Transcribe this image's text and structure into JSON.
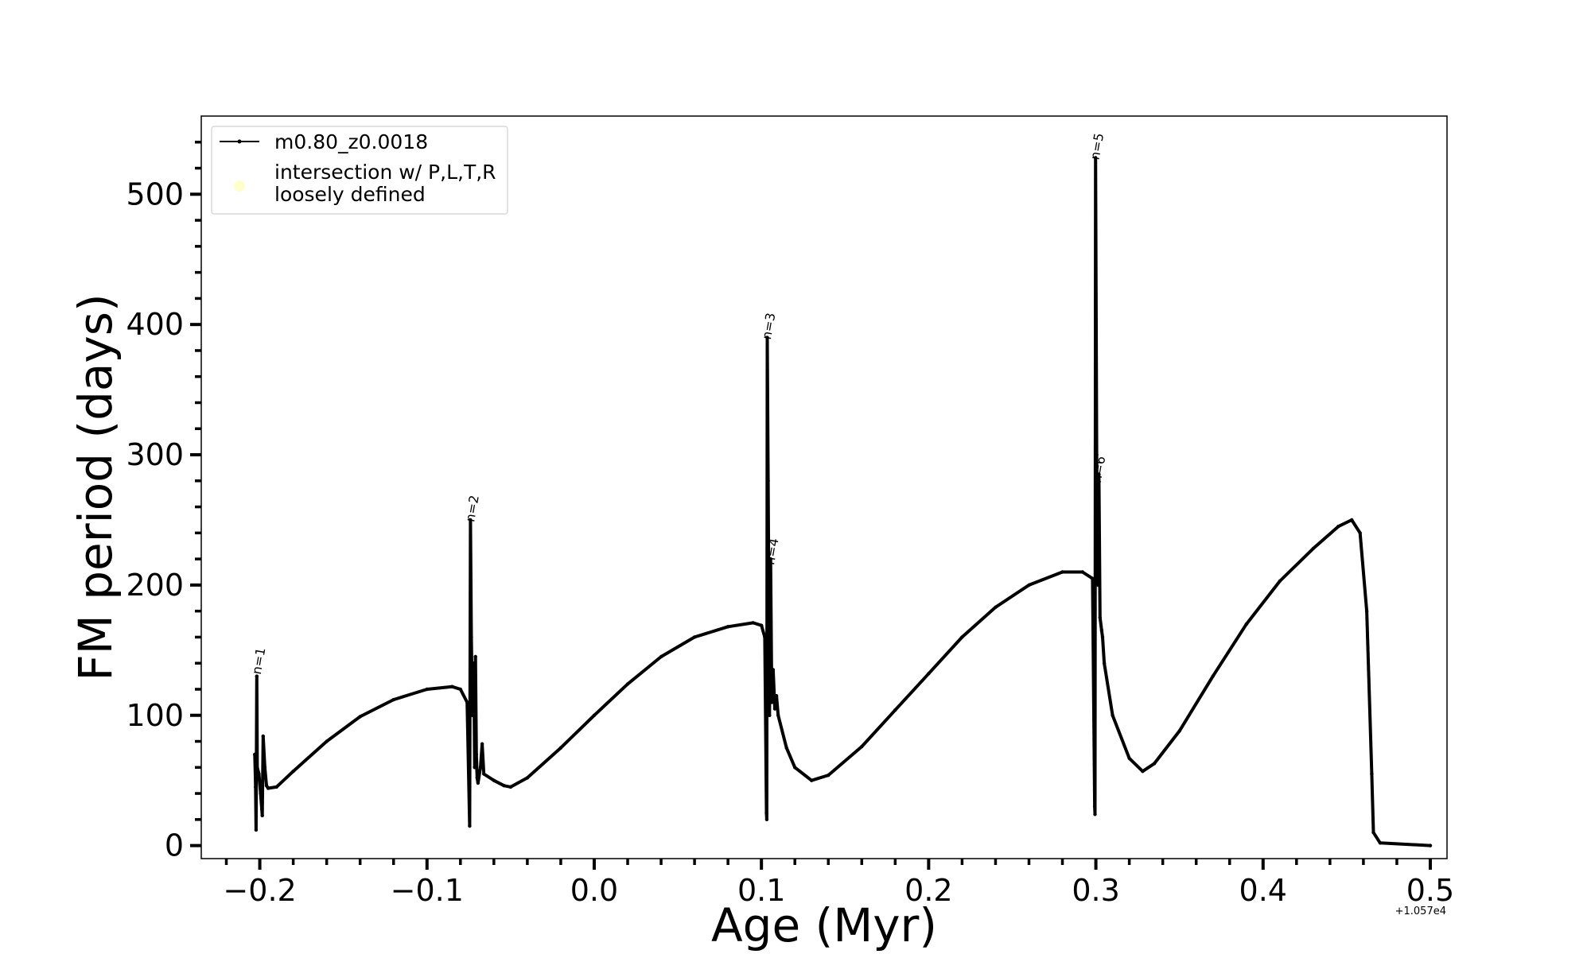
{
  "chart_data": {
    "type": "line",
    "title": "",
    "xlabel": "Age (Myr)",
    "ylabel": "FM period (days)",
    "x_offset_label": "+1.057e4",
    "xlim": [
      -0.235,
      0.51
    ],
    "ylim": [
      -10,
      560
    ],
    "x_ticks": [
      -0.2,
      -0.1,
      0.0,
      0.1,
      0.2,
      0.3,
      0.4,
      0.5
    ],
    "x_tick_labels": [
      "−0.2",
      "−0.1",
      "0.0",
      "0.1",
      "0.2",
      "0.3",
      "0.4",
      "0.5"
    ],
    "y_ticks": [
      0,
      100,
      200,
      300,
      400,
      500
    ],
    "y_tick_labels": [
      "0",
      "100",
      "200",
      "300",
      "400",
      "500"
    ],
    "grid": false,
    "legend_position": "top-left",
    "legend": [
      {
        "label": "m0.80_z0.0018",
        "marker": "line-dot",
        "color": "#000000"
      },
      {
        "label": "intersection w/ P,L,T,R",
        "label_line2": "loosely defined",
        "marker": "circle",
        "color": "#ffffcc"
      }
    ],
    "series": [
      {
        "name": "m0.80_z0.0018",
        "color": "#000000",
        "points": [
          [
            -0.203,
            70
          ],
          [
            -0.2025,
            45
          ],
          [
            -0.2022,
            12
          ],
          [
            -0.2018,
            130
          ],
          [
            -0.2015,
            60
          ],
          [
            -0.2005,
            55
          ],
          [
            -0.1995,
            40
          ],
          [
            -0.1988,
            28
          ],
          [
            -0.1985,
            23
          ],
          [
            -0.198,
            84
          ],
          [
            -0.197,
            60
          ],
          [
            -0.196,
            46
          ],
          [
            -0.195,
            44
          ],
          [
            -0.19,
            45
          ],
          [
            -0.18,
            57
          ],
          [
            -0.16,
            80
          ],
          [
            -0.14,
            99
          ],
          [
            -0.12,
            112
          ],
          [
            -0.1,
            120
          ],
          [
            -0.085,
            122
          ],
          [
            -0.08,
            120
          ],
          [
            -0.076,
            110
          ],
          [
            -0.0745,
            15
          ],
          [
            -0.074,
            250
          ],
          [
            -0.0735,
            160
          ],
          [
            -0.0728,
            100
          ],
          [
            -0.072,
            140
          ],
          [
            -0.0715,
            60
          ],
          [
            -0.071,
            145
          ],
          [
            -0.0705,
            70
          ],
          [
            -0.07,
            52
          ],
          [
            -0.0695,
            48
          ],
          [
            -0.068,
            60
          ],
          [
            -0.067,
            78
          ],
          [
            -0.066,
            55
          ],
          [
            -0.06,
            50
          ],
          [
            -0.054,
            46
          ],
          [
            -0.05,
            45
          ],
          [
            -0.04,
            52
          ],
          [
            -0.02,
            75
          ],
          [
            0.0,
            100
          ],
          [
            0.02,
            124
          ],
          [
            0.04,
            145
          ],
          [
            0.06,
            160
          ],
          [
            0.08,
            168
          ],
          [
            0.095,
            171
          ],
          [
            0.1,
            169
          ],
          [
            0.102,
            160
          ],
          [
            0.103,
            25
          ],
          [
            0.1032,
            20
          ],
          [
            0.1035,
            390
          ],
          [
            0.104,
            280
          ],
          [
            0.1048,
            100
          ],
          [
            0.1055,
            220
          ],
          [
            0.1062,
            110
          ],
          [
            0.107,
            135
          ],
          [
            0.108,
            105
          ],
          [
            0.109,
            115
          ],
          [
            0.11,
            100
          ],
          [
            0.115,
            75
          ],
          [
            0.12,
            60
          ],
          [
            0.13,
            50
          ],
          [
            0.14,
            54
          ],
          [
            0.16,
            76
          ],
          [
            0.18,
            104
          ],
          [
            0.2,
            132
          ],
          [
            0.22,
            160
          ],
          [
            0.24,
            183
          ],
          [
            0.26,
            200
          ],
          [
            0.28,
            210
          ],
          [
            0.292,
            210
          ],
          [
            0.298,
            205
          ],
          [
            0.2993,
            30
          ],
          [
            0.2995,
            24
          ],
          [
            0.2998,
            528
          ],
          [
            0.3005,
            300
          ],
          [
            0.3012,
            200
          ],
          [
            0.3018,
            285
          ],
          [
            0.3025,
            175
          ],
          [
            0.3035,
            165
          ],
          [
            0.304,
            160
          ],
          [
            0.305,
            140
          ],
          [
            0.31,
            100
          ],
          [
            0.32,
            67
          ],
          [
            0.328,
            57
          ],
          [
            0.335,
            63
          ],
          [
            0.35,
            88
          ],
          [
            0.37,
            130
          ],
          [
            0.39,
            170
          ],
          [
            0.41,
            203
          ],
          [
            0.43,
            228
          ],
          [
            0.445,
            245
          ],
          [
            0.453,
            250
          ],
          [
            0.458,
            240
          ],
          [
            0.462,
            180
          ],
          [
            0.465,
            55
          ],
          [
            0.466,
            10
          ],
          [
            0.47,
            2
          ],
          [
            0.5,
            0
          ]
        ]
      }
    ],
    "annotations": [
      {
        "text": "n=1",
        "x": -0.1995,
        "y": 131
      },
      {
        "text": "n=2",
        "x": -0.0718,
        "y": 248
      },
      {
        "text": "n=3",
        "x": 0.1055,
        "y": 388
      },
      {
        "text": "n=4",
        "x": 0.1075,
        "y": 215
      },
      {
        "text": "n=5",
        "x": 0.3018,
        "y": 526
      },
      {
        "text": "n=6",
        "x": 0.3028,
        "y": 278
      }
    ]
  }
}
